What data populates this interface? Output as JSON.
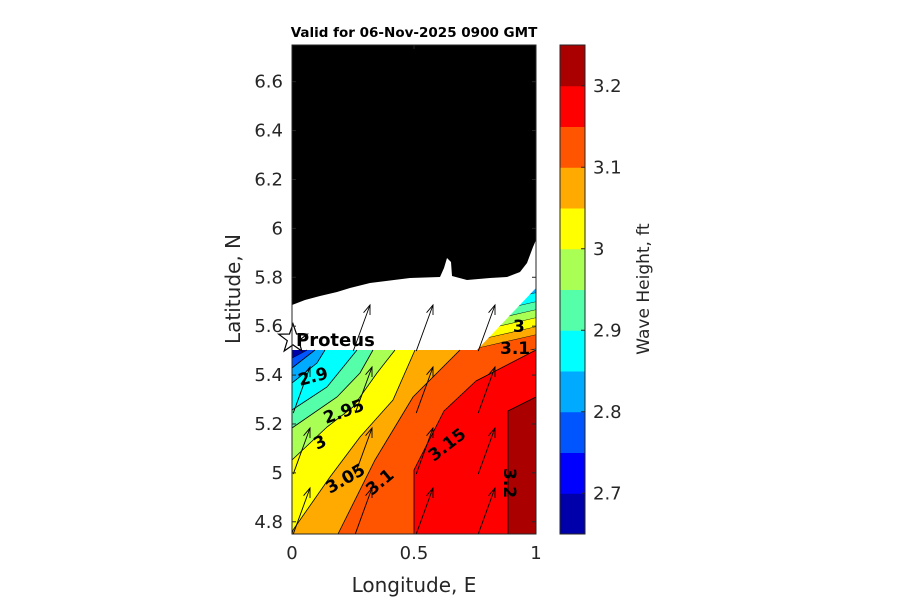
{
  "chart_data": {
    "type": "contour",
    "title": "Valid for 06-Nov-2025 0900 GMT",
    "xlabel": "Longitude, E",
    "ylabel": "Latitude, N",
    "xlim": [
      0,
      1
    ],
    "ylim": [
      4.75,
      6.75
    ],
    "xticks": [
      "0",
      "0.5",
      "1"
    ],
    "xtick_values": [
      0,
      0.5,
      1
    ],
    "yticks": [
      "4.8",
      "5",
      "5.2",
      "5.4",
      "5.6",
      "5.8",
      "6",
      "6.2",
      "6.4",
      "6.6"
    ],
    "ytick_values": [
      4.8,
      5.0,
      5.2,
      5.4,
      5.6,
      5.8,
      6.0,
      6.2,
      6.4,
      6.6
    ],
    "colorbar": {
      "label": "Wave Height, ft",
      "range": [
        2.65,
        3.25
      ],
      "levels": [
        2.65,
        2.7,
        2.75,
        2.8,
        2.85,
        2.9,
        2.95,
        3.0,
        3.05,
        3.1,
        3.15,
        3.2,
        3.25
      ],
      "colors": [
        "#0000aa",
        "#0000ff",
        "#0055ff",
        "#00aaff",
        "#00ffff",
        "#55ffaa",
        "#aaff55",
        "#ffff00",
        "#ffaa00",
        "#ff5500",
        "#ff0000",
        "#aa0000"
      ],
      "ticks": [
        "2.7",
        "2.8",
        "2.9",
        "3",
        "3.1",
        "3.2"
      ],
      "tick_values": [
        2.7,
        2.8,
        2.9,
        3.0,
        3.1,
        3.2
      ]
    },
    "contour_labels": [
      "2.9",
      "2.95",
      "3",
      "3.05",
      "3.1",
      "3.15",
      "3.2",
      "3",
      "3.1"
    ],
    "station": {
      "name": "Proteus",
      "lon": 0.0,
      "lat": 5.54
    },
    "arrow_direction_deg": 20,
    "land_color": "#000000"
  }
}
